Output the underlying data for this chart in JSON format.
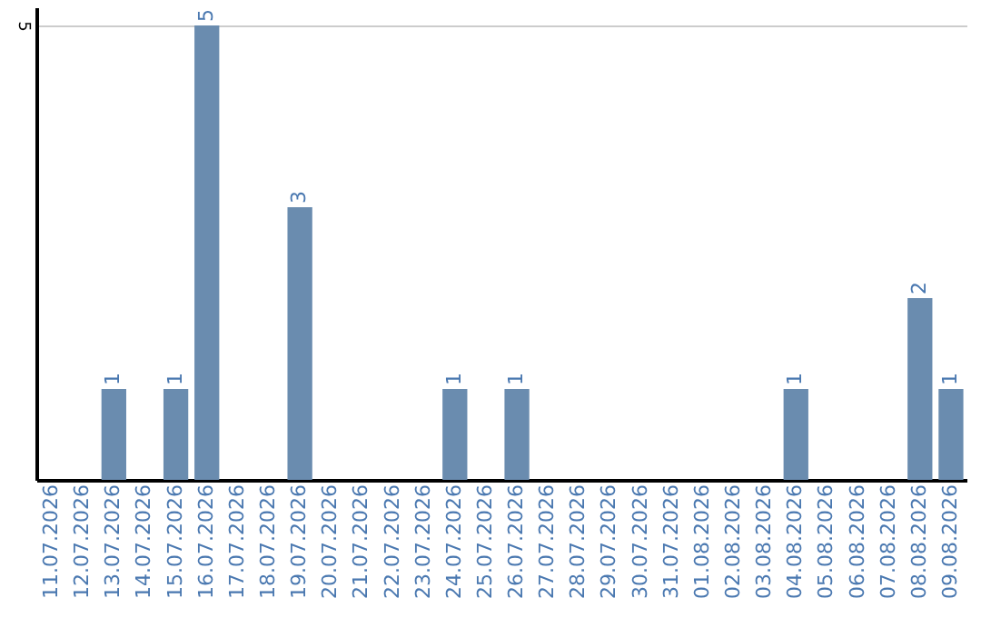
{
  "chart_data": {
    "type": "bar",
    "categories": [
      "11.07.2026",
      "12.07.2026",
      "13.07.2026",
      "14.07.2026",
      "15.07.2026",
      "16.07.2026",
      "17.07.2026",
      "18.07.2026",
      "19.07.2026",
      "20.07.2026",
      "21.07.2026",
      "22.07.2026",
      "23.07.2026",
      "24.07.2026",
      "25.07.2026",
      "26.07.2026",
      "27.07.2026",
      "28.07.2026",
      "29.07.2026",
      "30.07.2026",
      "31.07.2026",
      "01.08.2026",
      "02.08.2026",
      "03.08.2026",
      "04.08.2026",
      "05.08.2026",
      "06.08.2026",
      "07.08.2026",
      "08.08.2026",
      "09.08.2026"
    ],
    "values": [
      0,
      0,
      1,
      0,
      1,
      5,
      0,
      0,
      3,
      0,
      0,
      0,
      0,
      1,
      0,
      1,
      0,
      0,
      0,
      0,
      0,
      0,
      0,
      0,
      1,
      0,
      0,
      0,
      2,
      1
    ],
    "value_labels": [
      null,
      null,
      "1",
      null,
      "1",
      "5",
      null,
      null,
      "3",
      null,
      null,
      null,
      null,
      "1",
      null,
      "1",
      null,
      null,
      null,
      null,
      null,
      null,
      null,
      null,
      "1",
      null,
      null,
      null,
      "2",
      "1"
    ],
    "color": "#6a8caf",
    "ylim": [
      0,
      5.2
    ],
    "yticks": [
      5
    ],
    "grid": "y"
  }
}
